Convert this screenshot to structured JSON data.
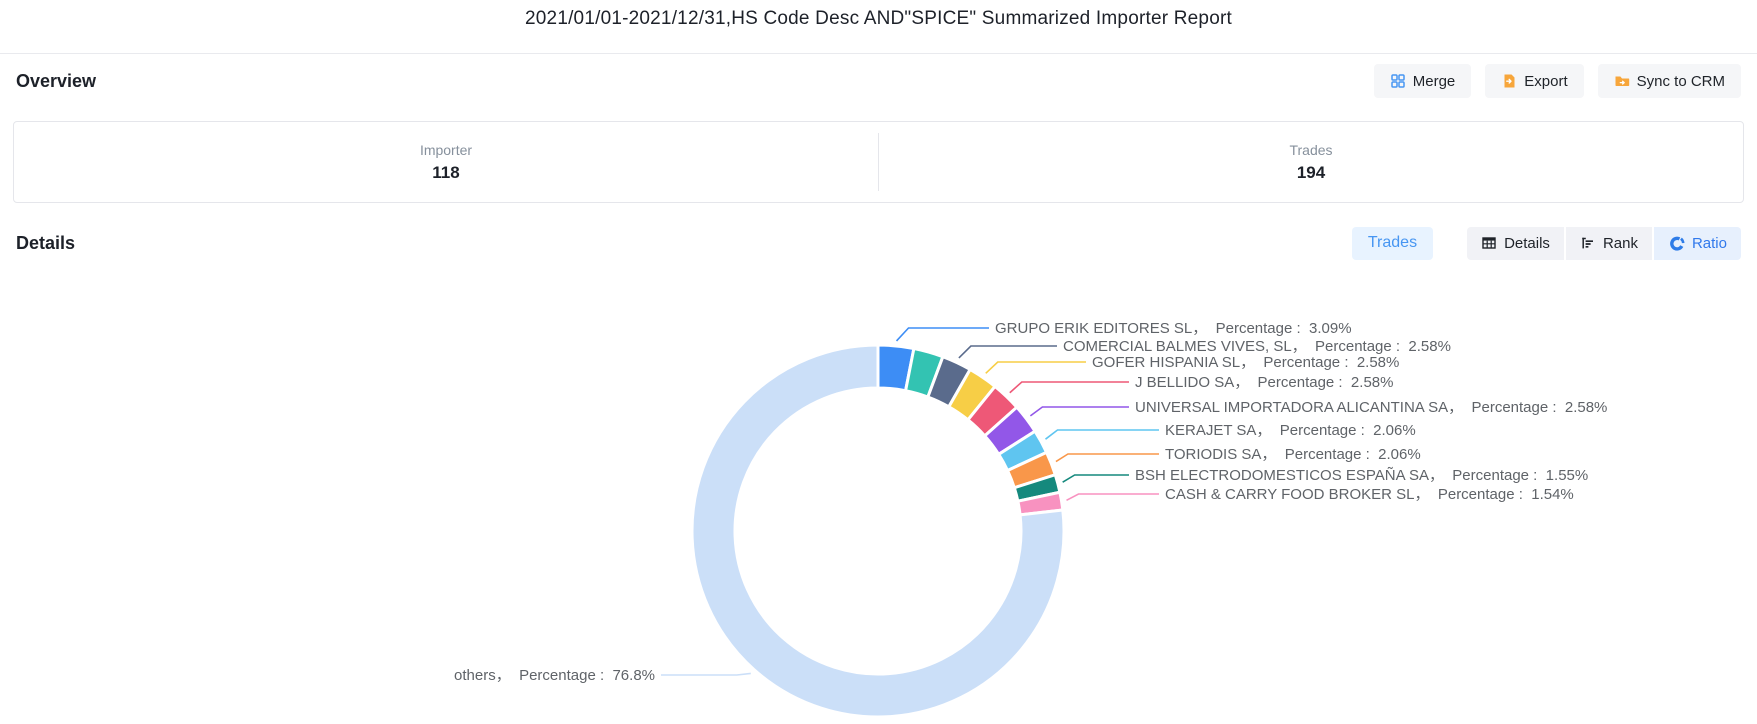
{
  "header": {
    "title": "2021/01/01-2021/12/31,HS Code Desc AND\"SPICE\" Summarized Importer Report"
  },
  "theme": {
    "accent_blue": "#3E86F0",
    "active_bg": "#E7F0FD",
    "trades_bg": "#E8F3FF",
    "button_bg": "#F5F6F8",
    "icon_orange": "#F7A63B",
    "border_gray": "#E5E6EB",
    "label_gray": "#5F6368"
  },
  "overview": {
    "heading": "Overview",
    "actions": [
      {
        "label": "Merge",
        "icon": "merge-grid-icon"
      },
      {
        "label": "Export",
        "icon": "export-document-icon"
      },
      {
        "label": "Sync to CRM",
        "icon": "folder-sync-icon"
      }
    ],
    "stats": [
      {
        "label": "Importer",
        "value": "118"
      },
      {
        "label": "Trades",
        "value": "194"
      }
    ]
  },
  "details": {
    "heading": "Details",
    "trades_button": "Trades",
    "views": [
      {
        "label": "Details",
        "icon": "table-icon",
        "active": false
      },
      {
        "label": "Rank",
        "icon": "rank-bars-icon",
        "active": false
      },
      {
        "label": "Ratio",
        "icon": "donut-chart-icon",
        "active": true
      }
    ]
  },
  "chart_data": {
    "type": "pie",
    "donut": true,
    "legend_position": "none",
    "percent_word": "Percentage",
    "slices": [
      {
        "name": "GRUPO ERIK EDITORES SL",
        "value": 3.09,
        "pct": "3.09%",
        "color": "#3D8DF5",
        "label_visible": true
      },
      {
        "name": "",
        "value": 2.58,
        "pct": "",
        "color": "#33C3B2",
        "label_visible": false
      },
      {
        "name": "COMERCIAL BALMES VIVES, SL",
        "value": 2.58,
        "pct": "2.58%",
        "color": "#5A6B8C",
        "label_visible": true
      },
      {
        "name": "GOFER HISPANIA SL",
        "value": 2.58,
        "pct": "2.58%",
        "color": "#F7CE46",
        "label_visible": true
      },
      {
        "name": "J BELLIDO SA",
        "value": 2.58,
        "pct": "2.58%",
        "color": "#EE5877",
        "label_visible": true
      },
      {
        "name": "UNIVERSAL IMPORTADORA ALICANTINA SA",
        "value": 2.58,
        "pct": "2.58%",
        "color": "#9257E8",
        "label_visible": true
      },
      {
        "name": "KERAJET SA",
        "value": 2.06,
        "pct": "2.06%",
        "color": "#5FC5F0",
        "label_visible": true
      },
      {
        "name": "TORIODIS SA",
        "value": 2.06,
        "pct": "2.06%",
        "color": "#F9974A",
        "label_visible": true
      },
      {
        "name": "BSH ELECTRODOMESTICOS ESPAÑA SA",
        "value": 1.55,
        "pct": "1.55%",
        "color": "#15897D",
        "label_visible": true
      },
      {
        "name": "CASH & CARRY FOOD BROKER SL",
        "value": 1.54,
        "pct": "1.54%",
        "color": "#F892C0",
        "label_visible": true
      },
      {
        "name": "others",
        "value": 76.8,
        "pct": "76.8%",
        "color": "#CBDFF8",
        "label_visible": true
      }
    ]
  }
}
